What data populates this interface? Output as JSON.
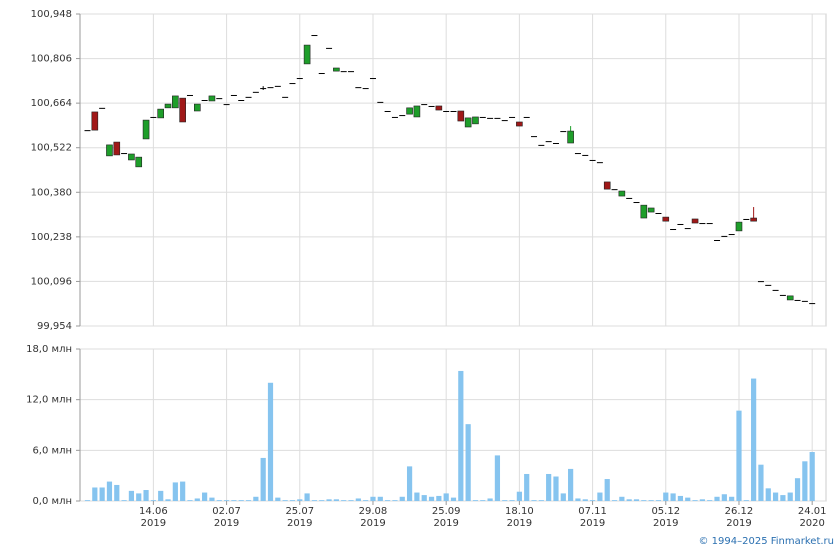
{
  "chart_data": [
    {
      "type": "candlestick",
      "open": [
        100.578,
        100.636,
        100.649,
        100.496,
        100.54,
        100.505,
        100.483,
        100.461,
        100.55,
        100.62,
        100.617,
        100.649,
        100.649,
        100.68,
        100.69,
        100.639,
        100.674,
        100.671,
        100.68,
        100.661,
        100.69,
        100.674,
        100.684,
        100.7,
        100.712,
        100.715,
        100.719,
        100.684,
        100.728,
        100.744,
        100.789,
        100.881,
        100.76,
        100.84,
        100.766,
        100.766,
        100.766,
        100.715,
        100.712,
        100.744,
        100.668,
        100.639,
        100.62,
        100.626,
        100.629,
        100.62,
        100.661,
        100.655,
        100.655,
        100.639,
        100.639,
        100.639,
        100.588,
        100.598,
        100.62,
        100.617,
        100.617,
        100.61,
        100.62,
        100.604,
        100.62,
        100.559,
        100.531,
        100.543,
        100.537,
        100.575,
        100.537,
        100.505,
        100.499,
        100.483,
        100.476,
        100.413,
        100.39,
        100.368,
        100.362,
        100.349,
        100.298,
        100.317,
        100.314,
        100.301,
        100.263,
        100.279,
        100.266,
        100.295,
        100.282,
        100.282,
        100.228,
        100.241,
        100.247,
        100.257,
        100.295,
        100.298,
        100.097,
        100.085,
        100.069,
        100.053,
        100.037,
        100.037,
        100.034,
        100.027
      ],
      "high": [
        100.578,
        100.636,
        100.649,
        100.531,
        100.54,
        100.505,
        100.502,
        100.492,
        100.61,
        100.62,
        100.645,
        100.661,
        100.687,
        100.68,
        100.69,
        100.661,
        100.674,
        100.687,
        100.68,
        100.661,
        100.69,
        100.674,
        100.684,
        100.7,
        100.718,
        100.715,
        100.719,
        100.684,
        100.728,
        100.744,
        100.849,
        100.881,
        100.76,
        100.84,
        100.776,
        100.766,
        100.766,
        100.715,
        100.712,
        100.744,
        100.668,
        100.639,
        100.62,
        100.626,
        100.649,
        100.655,
        100.661,
        100.655,
        100.655,
        100.639,
        100.639,
        100.639,
        100.617,
        100.62,
        100.62,
        100.617,
        100.617,
        100.61,
        100.62,
        100.604,
        100.62,
        100.559,
        100.531,
        100.543,
        100.537,
        100.575,
        100.591,
        100.505,
        100.499,
        100.483,
        100.476,
        100.413,
        100.39,
        100.384,
        100.362,
        100.349,
        100.339,
        100.33,
        100.314,
        100.301,
        100.263,
        100.279,
        100.266,
        100.295,
        100.282,
        100.282,
        100.228,
        100.241,
        100.247,
        100.285,
        100.295,
        100.333,
        100.097,
        100.085,
        100.069,
        100.053,
        100.05,
        100.037,
        100.034,
        100.027
      ],
      "low": [
        100.578,
        100.578,
        100.649,
        100.496,
        100.499,
        100.505,
        100.483,
        100.461,
        100.55,
        100.62,
        100.617,
        100.649,
        100.649,
        100.604,
        100.69,
        100.639,
        100.674,
        100.671,
        100.68,
        100.661,
        100.69,
        100.674,
        100.684,
        100.7,
        100.706,
        100.715,
        100.719,
        100.684,
        100.728,
        100.744,
        100.789,
        100.881,
        100.76,
        100.84,
        100.766,
        100.766,
        100.766,
        100.715,
        100.712,
        100.744,
        100.668,
        100.639,
        100.62,
        100.626,
        100.629,
        100.62,
        100.661,
        100.655,
        100.642,
        100.639,
        100.639,
        100.607,
        100.588,
        100.598,
        100.62,
        100.617,
        100.617,
        100.61,
        100.62,
        100.591,
        100.62,
        100.559,
        100.531,
        100.543,
        100.537,
        100.575,
        100.537,
        100.505,
        100.499,
        100.483,
        100.476,
        100.39,
        100.39,
        100.368,
        100.362,
        100.349,
        100.298,
        100.317,
        100.314,
        100.288,
        100.263,
        100.279,
        100.266,
        100.282,
        100.282,
        100.282,
        100.228,
        100.241,
        100.247,
        100.257,
        100.295,
        100.288,
        100.097,
        100.085,
        100.069,
        100.053,
        100.037,
        100.037,
        100.034,
        100.027
      ],
      "close": [
        100.578,
        100.578,
        100.649,
        100.531,
        100.499,
        100.505,
        100.502,
        100.492,
        100.61,
        100.62,
        100.645,
        100.661,
        100.687,
        100.604,
        100.69,
        100.661,
        100.674,
        100.687,
        100.68,
        100.661,
        100.69,
        100.674,
        100.684,
        100.7,
        100.712,
        100.715,
        100.719,
        100.684,
        100.728,
        100.744,
        100.849,
        100.881,
        100.76,
        100.84,
        100.776,
        100.766,
        100.766,
        100.715,
        100.712,
        100.744,
        100.668,
        100.639,
        100.62,
        100.626,
        100.649,
        100.655,
        100.661,
        100.655,
        100.642,
        100.639,
        100.639,
        100.607,
        100.617,
        100.62,
        100.62,
        100.617,
        100.617,
        100.61,
        100.62,
        100.591,
        100.62,
        100.559,
        100.531,
        100.543,
        100.537,
        100.575,
        100.575,
        100.505,
        100.499,
        100.483,
        100.476,
        100.39,
        100.39,
        100.384,
        100.362,
        100.349,
        100.339,
        100.33,
        100.314,
        100.288,
        100.263,
        100.279,
        100.266,
        100.282,
        100.282,
        100.282,
        100.228,
        100.241,
        100.247,
        100.285,
        100.295,
        100.288,
        100.097,
        100.085,
        100.069,
        100.053,
        100.05,
        100.037,
        100.034,
        100.027
      ],
      "up_color": "#1e9e2a",
      "down_color": "#a01818",
      "flat_color": "#000000",
      "ylim": [
        99.954,
        100.948
      ],
      "yticks": [
        {
          "value": 99.954,
          "label": "99,954"
        },
        {
          "value": 100.096,
          "label": "100,096"
        },
        {
          "value": 100.238,
          "label": "100,238"
        },
        {
          "value": 100.38,
          "label": "100,380"
        },
        {
          "value": 100.522,
          "label": "100,522"
        },
        {
          "value": 100.664,
          "label": "100,664"
        },
        {
          "value": 100.806,
          "label": "100,806"
        },
        {
          "value": 100.948,
          "label": "100,948"
        }
      ],
      "grid": true
    },
    {
      "type": "bar",
      "categories": [
        null,
        null,
        null,
        null,
        null,
        null,
        null,
        null,
        null,
        "14.06\n2019",
        null,
        null,
        null,
        null,
        null,
        null,
        null,
        null,
        null,
        "02.07\n2019",
        null,
        null,
        null,
        null,
        null,
        null,
        null,
        null,
        null,
        "25.07\n2019",
        null,
        null,
        null,
        null,
        null,
        null,
        null,
        null,
        null,
        "29.08\n2019",
        null,
        null,
        null,
        null,
        null,
        null,
        null,
        null,
        null,
        "25.09\n2019",
        null,
        null,
        null,
        null,
        null,
        null,
        null,
        null,
        null,
        "18.10\n2019",
        null,
        null,
        null,
        null,
        null,
        null,
        null,
        null,
        null,
        "07.11\n2019",
        null,
        null,
        null,
        null,
        null,
        null,
        null,
        null,
        null,
        "05.12\n2019",
        null,
        null,
        null,
        null,
        null,
        null,
        null,
        null,
        null,
        "26.12\n2019",
        null,
        null,
        null,
        null,
        null,
        null,
        null,
        null,
        null,
        "24.01\n2020"
      ],
      "values": [
        0.1,
        1.6,
        1.6,
        2.3,
        1.9,
        0.1,
        1.2,
        0.9,
        1.3,
        0.1,
        1.2,
        0.2,
        2.2,
        2.3,
        0.1,
        0.3,
        1.0,
        0.4,
        0.1,
        0.1,
        0.1,
        0.1,
        0.1,
        0.5,
        5.1,
        14.0,
        0.4,
        0.1,
        0.1,
        0.2,
        0.9,
        0.1,
        0.1,
        0.2,
        0.2,
        0.1,
        0.1,
        0.3,
        0.1,
        0.5,
        0.5,
        0.1,
        0.1,
        0.5,
        4.1,
        1.0,
        0.7,
        0.5,
        0.6,
        0.9,
        0.4,
        15.4,
        9.1,
        0.1,
        0.1,
        0.3,
        5.4,
        0.1,
        0.1,
        1.1,
        3.2,
        0.1,
        0.1,
        3.2,
        2.9,
        0.9,
        3.8,
        0.3,
        0.2,
        0.1,
        1.0,
        2.6,
        0.1,
        0.5,
        0.2,
        0.2,
        0.1,
        0.1,
        0.1,
        1.0,
        0.9,
        0.6,
        0.4,
        0.1,
        0.2,
        0.1,
        0.5,
        0.8,
        0.5,
        10.7,
        0.1,
        14.5,
        4.3,
        1.5,
        1.0,
        0.7,
        1.0,
        2.7,
        4.7,
        5.8
      ],
      "color": "#86c4ef",
      "ylim": [
        0,
        18
      ],
      "yticks": [
        {
          "value": 0,
          "label": "0,0 млн"
        },
        {
          "value": 6,
          "label": "6,0 млн"
        },
        {
          "value": 12,
          "label": "12,0 млн"
        },
        {
          "value": 18,
          "label": "18,0 млн"
        }
      ],
      "grid": true
    }
  ],
  "source": "© 1994–2025 Finmarket.ru"
}
